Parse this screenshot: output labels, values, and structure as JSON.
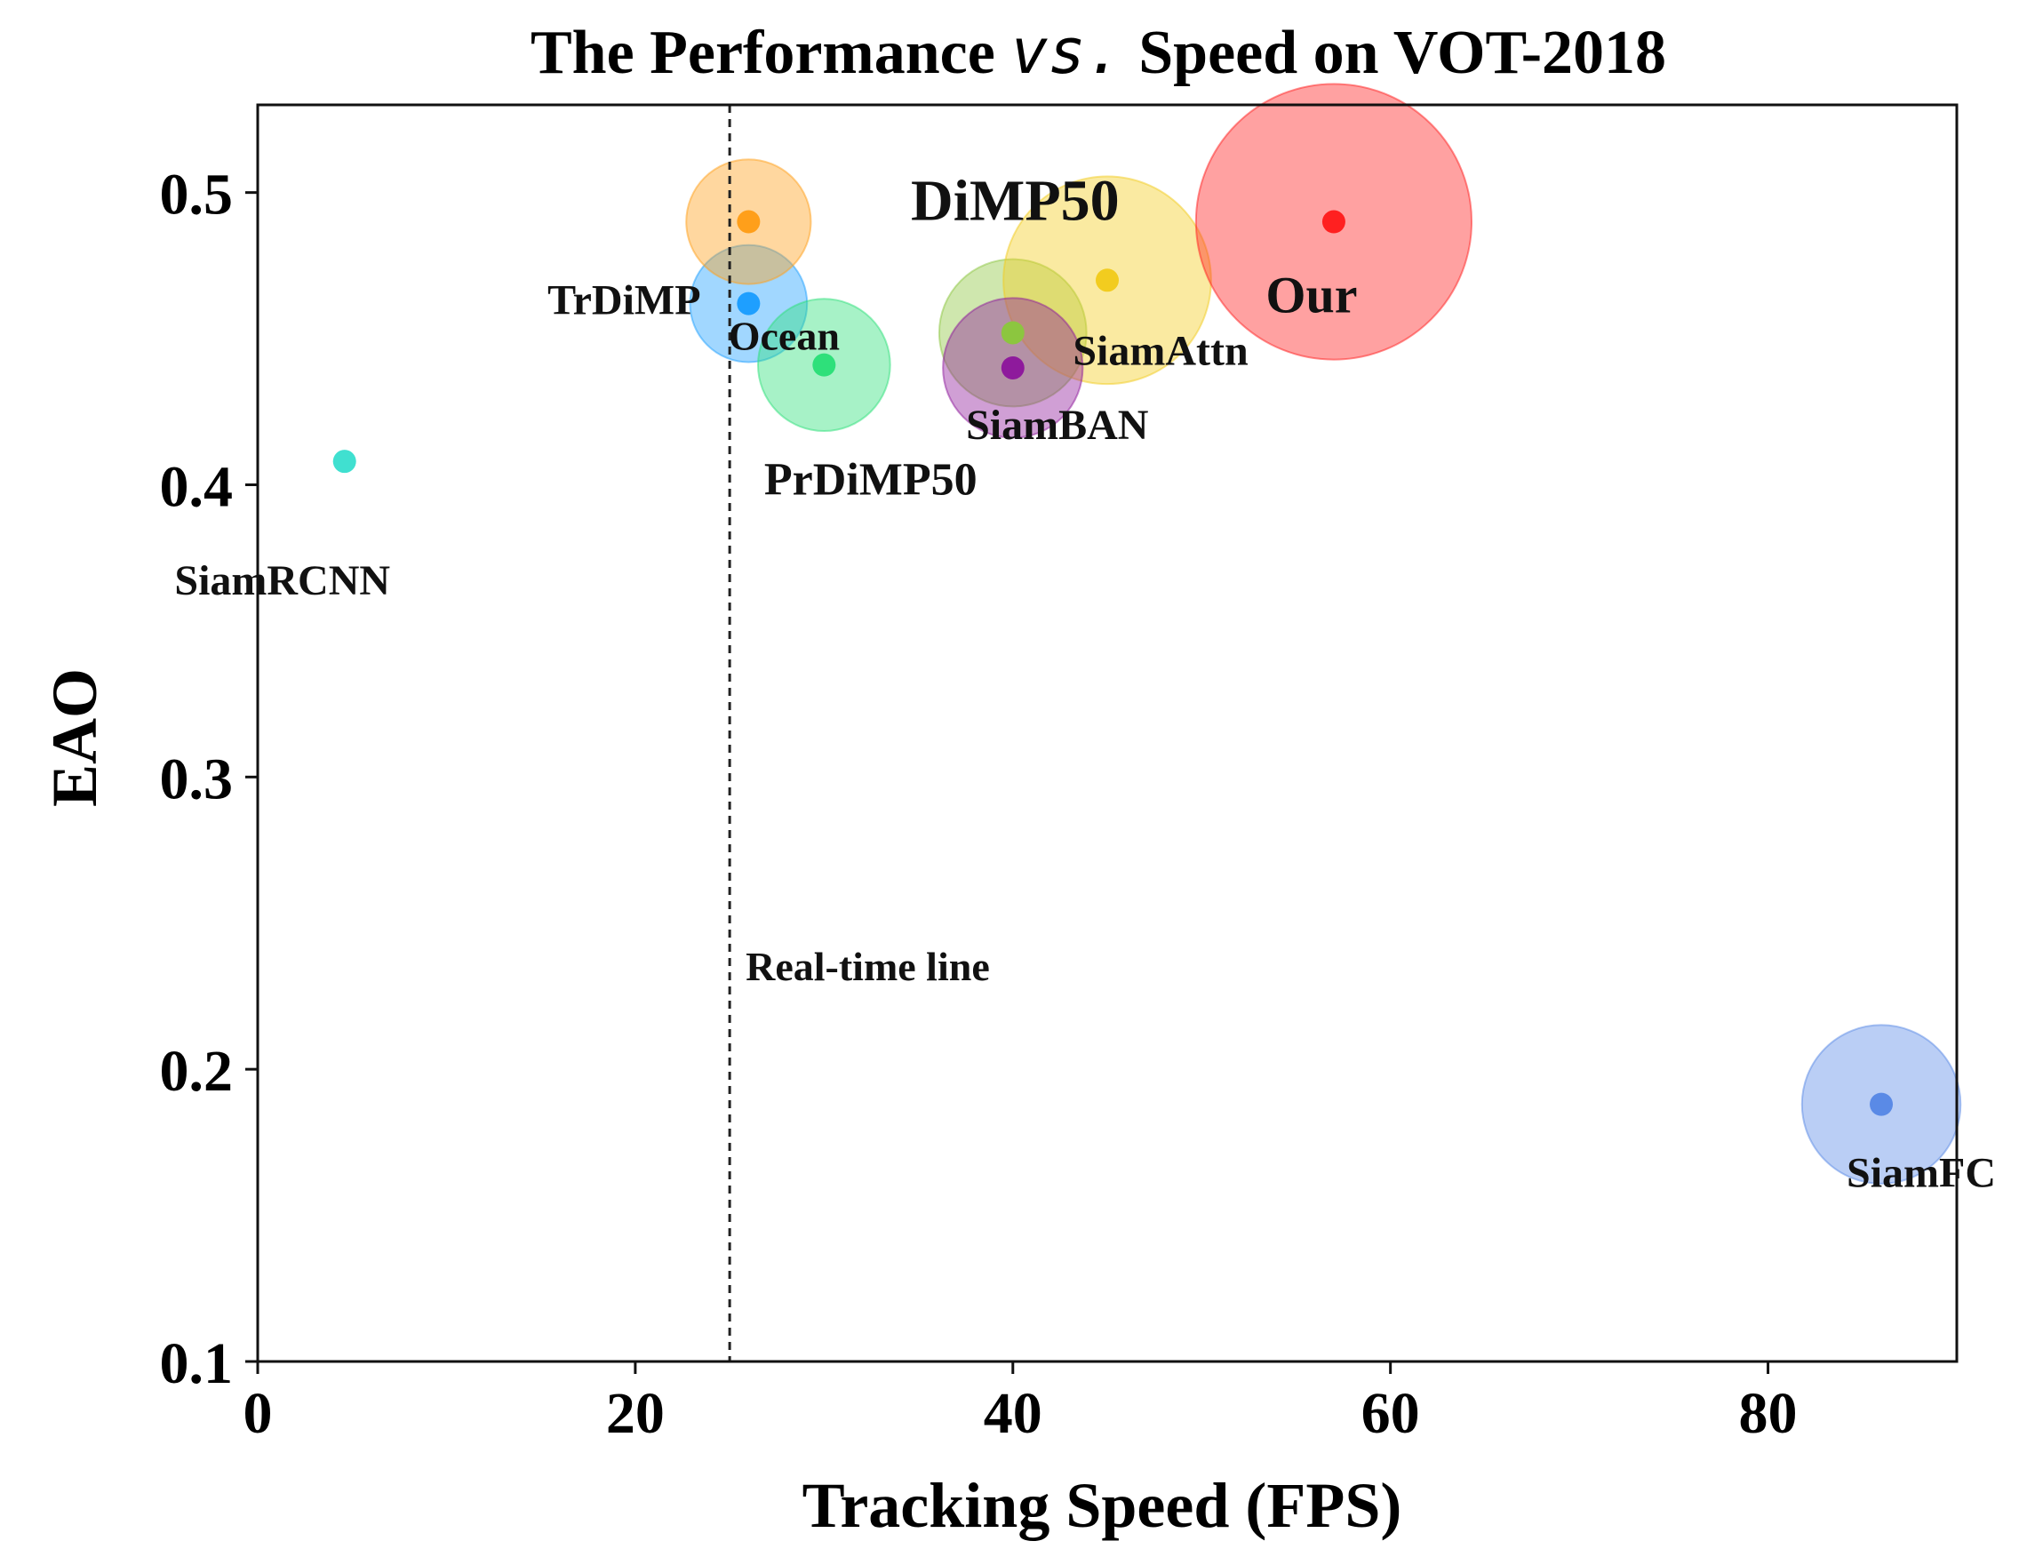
{
  "chart_data": {
    "type": "scatter",
    "title_parts": {
      "before": "The Performance ",
      "vs": "vs.",
      "after": " Speed on VOT-2018"
    },
    "xlabel": "Tracking Speed (FPS)",
    "ylabel": "EAO",
    "xlim": [
      0,
      90
    ],
    "ylim": [
      0.1,
      0.53
    ],
    "xticks": [
      0,
      20,
      40,
      60,
      80
    ],
    "yticks": [
      0.1,
      0.2,
      0.3,
      0.4,
      0.5
    ],
    "xtick_labels": [
      "0",
      "20",
      "40",
      "60",
      "80"
    ],
    "ytick_labels": [
      "0.1",
      "0.2",
      "0.3",
      "0.4",
      "0.5"
    ],
    "realtime_line": {
      "x": 25,
      "label": "Real-time line"
    },
    "trackers": [
      {
        "name": "SiamRCNN",
        "fps": 4.6,
        "eao": 0.408,
        "bubble_radius_fps": 0,
        "color": "#40E0D0",
        "label_anchor": "below-left"
      },
      {
        "name": "TrDiMP",
        "fps": 26,
        "eao": 0.462,
        "bubble_radius_fps": 3.1,
        "color": "#1E9FFF",
        "label_anchor": "left"
      },
      {
        "name": "DiMP50",
        "fps": 26,
        "eao": 0.49,
        "bubble_radius_fps": 3.3,
        "color": "#FF9F1A",
        "label_anchor": "far-right"
      },
      {
        "name": "Ocean",
        "fps": 30,
        "eao": 0.441,
        "bubble_radius_fps": 3.5,
        "color": "#2EE07A",
        "label_anchor": "upper-left"
      },
      {
        "name": "PrDiMP50",
        "fps": 40,
        "eao": 0.452,
        "bubble_radius_fps": 3.9,
        "color": "#8CC63F",
        "label_anchor": "far-lower-left"
      },
      {
        "name": "SiamAttn",
        "fps": 45,
        "eao": 0.47,
        "bubble_radius_fps": 5.5,
        "color": "#F2CC1F",
        "label_anchor": "below"
      },
      {
        "name": "SiamBAN",
        "fps": 40,
        "eao": 0.44,
        "bubble_radius_fps": 3.7,
        "color": "#8E1A9C",
        "label_anchor": "below"
      },
      {
        "name": "Our",
        "fps": 57,
        "eao": 0.49,
        "bubble_radius_fps": 7.3,
        "color": "#FF2020",
        "label_anchor": "below"
      },
      {
        "name": "SiamFC",
        "fps": 86,
        "eao": 0.188,
        "bubble_radius_fps": 4.2,
        "color": "#5A8AE6",
        "label_anchor": "below"
      }
    ]
  }
}
